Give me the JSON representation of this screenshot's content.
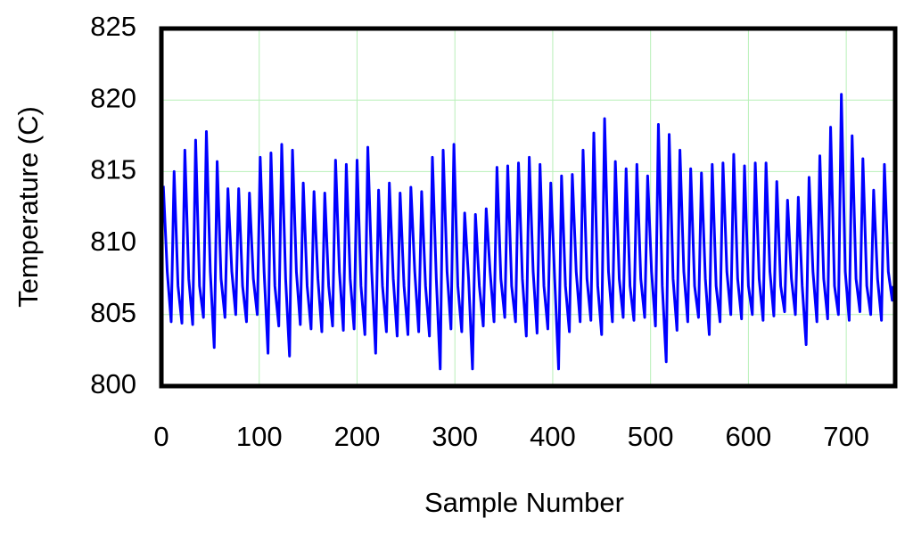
{
  "chart_data": {
    "type": "line",
    "xlabel": "Sample Number",
    "ylabel": "Temperature (C)",
    "color": "#0000ff",
    "grid": true,
    "grid_color": "#b8f0b8",
    "xlim": [
      0,
      750
    ],
    "xticks": [
      0,
      100,
      200,
      300,
      400,
      500,
      600,
      700
    ],
    "ylim": [
      800,
      825
    ],
    "yticks": [
      800,
      805,
      810,
      815,
      820,
      825
    ],
    "x": [
      2,
      6,
      10,
      13,
      17,
      21,
      24,
      28,
      32,
      35,
      39,
      43,
      46,
      50,
      54,
      57,
      61,
      65,
      68,
      72,
      76,
      79,
      83,
      87,
      90,
      94,
      98,
      101,
      105,
      109,
      112,
      116,
      120,
      123,
      127,
      131,
      134,
      138,
      142,
      145,
      149,
      153,
      156,
      160,
      164,
      167,
      171,
      175,
      178,
      182,
      186,
      189,
      193,
      197,
      200,
      204,
      208,
      211,
      215,
      219,
      222,
      226,
      230,
      233,
      237,
      241,
      244,
      248,
      252,
      255,
      259,
      263,
      266,
      270,
      274,
      277,
      281,
      285,
      288,
      292,
      296,
      299,
      303,
      307,
      310,
      314,
      318,
      321,
      325,
      329,
      332,
      336,
      340,
      343,
      347,
      351,
      354,
      358,
      362,
      365,
      369,
      373,
      376,
      380,
      384,
      387,
      391,
      395,
      398,
      402,
      406,
      409,
      413,
      417,
      420,
      424,
      428,
      431,
      435,
      439,
      442,
      446,
      450,
      453,
      457,
      461,
      464,
      468,
      472,
      475,
      479,
      483,
      486,
      490,
      494,
      497,
      501,
      505,
      508,
      512,
      516,
      519,
      523,
      527,
      530,
      534,
      538,
      541,
      545,
      549,
      552,
      556,
      560,
      563,
      567,
      571,
      574,
      578,
      582,
      585,
      589,
      593,
      596,
      600,
      604,
      607,
      611,
      615,
      618,
      622,
      626,
      629,
      633,
      637,
      640,
      644,
      648,
      651,
      655,
      659,
      662,
      666,
      670,
      673,
      677,
      681,
      684,
      688,
      692,
      695,
      699,
      703,
      706,
      710,
      714,
      717,
      721,
      725,
      728,
      732,
      736,
      739,
      743,
      747,
      748
    ],
    "values": [
      814,
      808,
      804.5,
      815,
      807,
      804.4,
      816.5,
      807.5,
      804.3,
      817.2,
      807,
      804.8,
      817.8,
      808,
      802.7,
      815.7,
      807.5,
      804.8,
      813.8,
      808,
      805,
      813.8,
      807,
      804.5,
      813.5,
      807.5,
      805,
      816,
      808,
      802.3,
      816.3,
      807,
      804.2,
      816.9,
      807.5,
      802.1,
      816.5,
      808,
      804.3,
      814.2,
      807,
      804,
      813.6,
      807.5,
      803.8,
      813.5,
      807,
      804.2,
      815.8,
      808,
      803.9,
      815.5,
      807.5,
      804,
      815.8,
      807,
      803.6,
      816.7,
      808,
      802.3,
      813.7,
      807,
      803.8,
      814.2,
      807.5,
      803.5,
      813.5,
      807,
      803.6,
      813.9,
      808,
      803.8,
      813.6,
      807,
      803.5,
      816,
      807.5,
      801.2,
      816.5,
      808,
      804,
      816.9,
      807,
      803.8,
      812.1,
      807.5,
      801.2,
      812,
      807,
      804.2,
      812.4,
      808,
      804.5,
      815.3,
      807.5,
      804.8,
      815.4,
      807,
      804.5,
      815.6,
      807.5,
      803.5,
      816,
      808,
      803.7,
      815.5,
      807,
      804,
      814.2,
      807.5,
      801.2,
      814.7,
      807,
      803.8,
      814.8,
      808,
      804.5,
      816.5,
      807.5,
      804.6,
      817.7,
      807,
      803.6,
      818.7,
      808,
      804.5,
      815.7,
      807.5,
      804.8,
      815.2,
      807,
      804.6,
      815.5,
      807.5,
      804.8,
      814.7,
      808,
      804.2,
      818.3,
      807,
      801.7,
      817.6,
      807.5,
      803.9,
      816.5,
      808,
      804.5,
      815.2,
      807,
      804.8,
      814.9,
      807.5,
      803.6,
      815.5,
      807,
      804.5,
      815.6,
      808,
      805,
      816.2,
      807.5,
      804.7,
      815.4,
      807,
      805,
      815.6,
      807.5,
      804.6,
      815.6,
      808,
      804.9,
      814.3,
      807,
      805.2,
      813,
      807.5,
      805,
      813.2,
      807,
      802.9,
      814.6,
      808,
      804.5,
      816.1,
      807.5,
      804.7,
      818.1,
      807,
      805,
      820.4,
      808,
      804.6,
      817.5,
      807.5,
      805.2,
      815.9,
      807,
      805,
      813.7,
      807.5,
      804.6,
      815.5,
      808,
      806,
      807
    ]
  }
}
